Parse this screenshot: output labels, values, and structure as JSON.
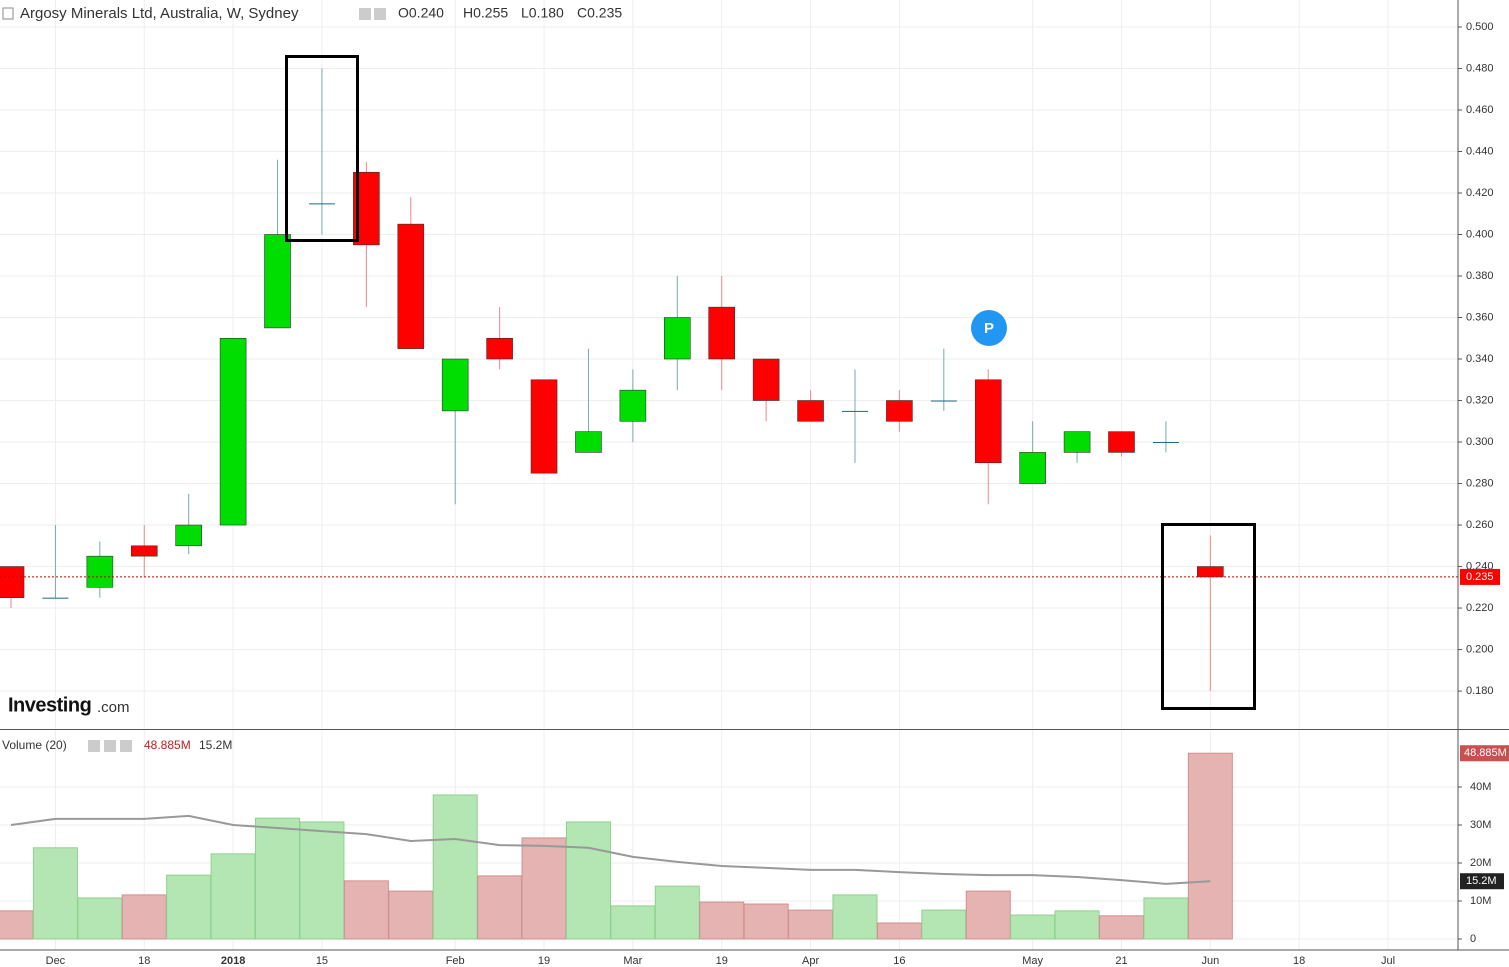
{
  "chart_data": [
    {
      "type": "candlestick",
      "title": "Argosy Minerals Ltd, Australia, W, Sydney",
      "ohlc_readout": [
        "O0.240",
        "H0.255",
        "L0.180",
        "C0.235"
      ],
      "watermark": [
        "Investing",
        ".com"
      ],
      "marker_label": "P",
      "categories": [
        null,
        "Dec",
        null,
        "18",
        null,
        "2018",
        null,
        "15",
        null,
        null,
        "Feb",
        null,
        "19",
        null,
        "Mar",
        null,
        "19",
        null,
        "Apr",
        null,
        "16",
        null,
        null,
        "May",
        null,
        "21",
        null,
        "Jun",
        null,
        "18",
        null,
        "Jul"
      ],
      "open": [
        0.24,
        0.225,
        0.23,
        0.25,
        0.25,
        0.26,
        0.355,
        0.415,
        0.43,
        0.405,
        0.315,
        0.35,
        0.33,
        0.295,
        0.31,
        0.34,
        0.365,
        0.34,
        0.32,
        0.315,
        0.32,
        0.32,
        0.33,
        0.28,
        0.295,
        0.305,
        0.3,
        0.24,
        null,
        null,
        null,
        null
      ],
      "high": [
        0.24,
        0.26,
        0.252,
        0.26,
        0.275,
        0.35,
        0.436,
        0.48,
        0.435,
        0.418,
        0.34,
        0.365,
        0.33,
        0.345,
        0.335,
        0.38,
        0.38,
        0.34,
        0.325,
        0.335,
        0.325,
        0.345,
        0.335,
        0.31,
        0.305,
        0.305,
        0.31,
        0.255,
        null,
        null,
        null,
        null
      ],
      "low": [
        0.22,
        0.225,
        0.225,
        0.235,
        0.246,
        0.26,
        0.355,
        0.4,
        0.365,
        0.345,
        0.27,
        0.335,
        0.285,
        0.295,
        0.3,
        0.325,
        0.325,
        0.31,
        0.31,
        0.29,
        0.305,
        0.315,
        0.27,
        0.28,
        0.29,
        0.293,
        0.295,
        0.18,
        null,
        null,
        null,
        null
      ],
      "close": [
        0.225,
        0.225,
        0.245,
        0.245,
        0.26,
        0.35,
        0.4,
        0.415,
        0.395,
        0.345,
        0.34,
        0.34,
        0.285,
        0.305,
        0.325,
        0.36,
        0.34,
        0.32,
        0.31,
        0.315,
        0.31,
        0.32,
        0.29,
        0.295,
        0.305,
        0.295,
        0.3,
        0.235,
        null,
        null,
        null,
        null
      ],
      "up_color": "#00dd00",
      "down_color": "#ff0000",
      "last_value": {
        "value": 0.235,
        "label": "0.235"
      },
      "ylim": [
        0.1622,
        0.513
      ],
      "yticks": [
        {
          "value": 0.18,
          "label": "0.180"
        },
        {
          "value": 0.2,
          "label": "0.200"
        },
        {
          "value": 0.22,
          "label": "0.220"
        },
        {
          "value": 0.24,
          "label": "0.240"
        },
        {
          "value": 0.26,
          "label": "0.260"
        },
        {
          "value": 0.28,
          "label": "0.280"
        },
        {
          "value": 0.3,
          "label": "0.300"
        },
        {
          "value": 0.32,
          "label": "0.320"
        },
        {
          "value": 0.34,
          "label": "0.340"
        },
        {
          "value": 0.36,
          "label": "0.360"
        },
        {
          "value": 0.38,
          "label": "0.380"
        },
        {
          "value": 0.4,
          "label": "0.400"
        },
        {
          "value": 0.42,
          "label": "0.420"
        },
        {
          "value": 0.44,
          "label": "0.440"
        },
        {
          "value": 0.46,
          "label": "0.460"
        },
        {
          "value": 0.48,
          "label": "0.480"
        },
        {
          "value": 0.5,
          "label": "0.500"
        }
      ],
      "grid": true
    },
    {
      "type": "bar",
      "title": "Volume (20)",
      "values": [
        7400000,
        24000000,
        10800000,
        11600000,
        16800000,
        22400000,
        31800000,
        30800000,
        15300000,
        12600000,
        37900000,
        16600000,
        26600000,
        30800000,
        8700000,
        13900000,
        9700000,
        9200000,
        7600000,
        11600000,
        4200000,
        7600000,
        12600000,
        6300000,
        7400000,
        6100000,
        10800000,
        48885000,
        null,
        null,
        null,
        null
      ],
      "value_labels": [
        null,
        null,
        null,
        null,
        null,
        null,
        null,
        null,
        null,
        null,
        null,
        null,
        null,
        null,
        null,
        null,
        null,
        null,
        null,
        null,
        null,
        null,
        null,
        null,
        null,
        null,
        null,
        "48.885M",
        null,
        null,
        null,
        null
      ],
      "ma_values": [
        30000000,
        31600000,
        31600000,
        31600000,
        32400000,
        30000000,
        29200000,
        28400000,
        27600000,
        25800000,
        26300000,
        24700000,
        24500000,
        24000000,
        21600000,
        20300000,
        19200000,
        18700000,
        18200000,
        18200000,
        17600000,
        17100000,
        16800000,
        16800000,
        16300000,
        15500000,
        14500000,
        15200000,
        null,
        null,
        null,
        null
      ],
      "ma_value_labels": [
        null,
        null,
        null,
        null,
        null,
        null,
        null,
        null,
        null,
        null,
        null,
        null,
        null,
        null,
        null,
        null,
        null,
        null,
        null,
        null,
        null,
        null,
        null,
        null,
        null,
        null,
        null,
        "15.2M",
        null,
        null,
        null,
        null
      ],
      "up_color": "#b3e6b3",
      "down_color": "#e6b3b3",
      "ma_color": "#999999",
      "ylim": [
        -2900000,
        55000000
      ],
      "yticks": [
        0,
        {
          "value": 10000000,
          "label": "10M"
        },
        {
          "value": 20000000,
          "label": "20M"
        },
        {
          "value": 30000000,
          "label": "30M"
        },
        {
          "value": 40000000,
          "label": "40M"
        }
      ],
      "grid": true
    }
  ]
}
